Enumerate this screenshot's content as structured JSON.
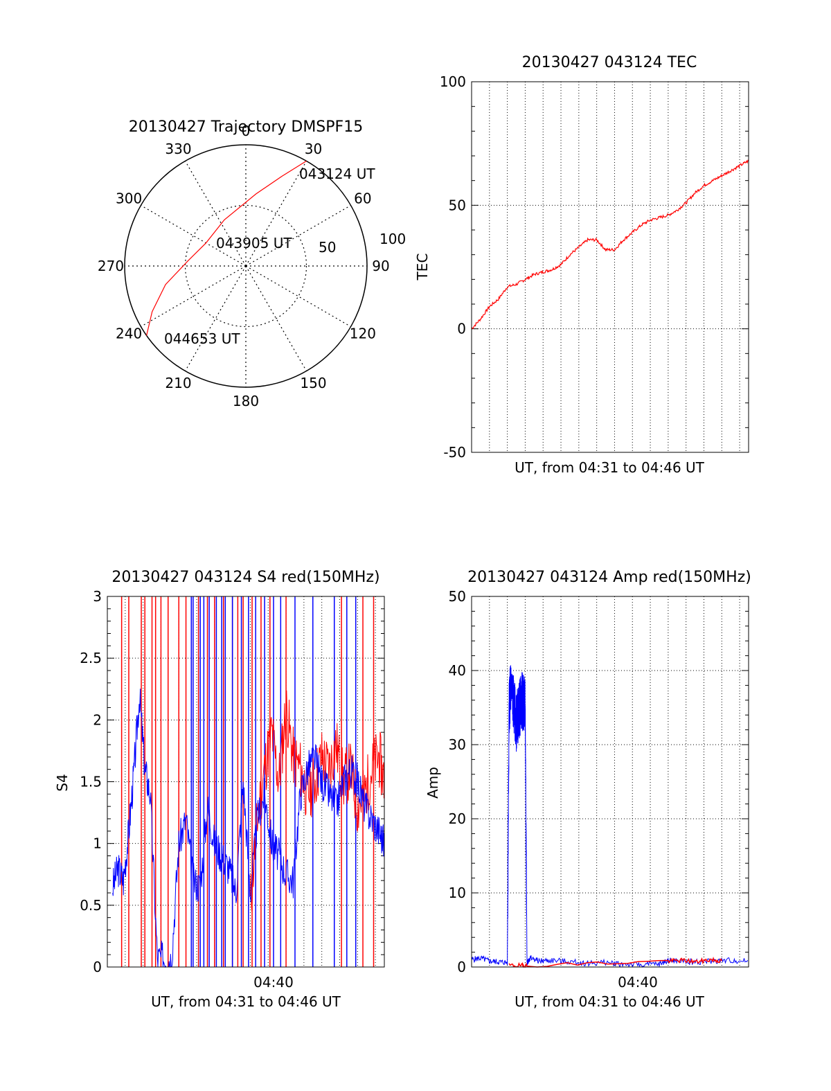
{
  "colors": {
    "red": "#ff0000",
    "blue": "#0000ff",
    "grid": "#000000"
  },
  "chart_data": [
    {
      "type": "polar-trajectory",
      "title": "20130427 Trajectory DMSPF15",
      "azimuth_labels": [
        "0",
        "30",
        "60",
        "90",
        "120",
        "150",
        "180",
        "210",
        "240",
        "270",
        "300",
        "330"
      ],
      "radial_labels": [
        "50",
        "100"
      ],
      "elevation_rings": [
        0,
        50
      ],
      "points": [
        {
          "label": "043124 UT",
          "azimuth": 30,
          "zenith_angle": 100
        },
        {
          "label": "043905 UT",
          "azimuth": 300,
          "zenith_angle": 15
        },
        {
          "label": "044653 UT",
          "azimuth": 235,
          "zenith_angle": 100
        }
      ],
      "track": [
        {
          "az": 30,
          "za": 100
        },
        {
          "az": 22,
          "za": 80
        },
        {
          "az": 8,
          "za": 60
        },
        {
          "az": 335,
          "za": 42
        },
        {
          "az": 300,
          "za": 38
        },
        {
          "az": 275,
          "za": 48
        },
        {
          "az": 257,
          "za": 68
        },
        {
          "az": 244,
          "za": 86
        },
        {
          "az": 235,
          "za": 100
        }
      ],
      "series_color": "red"
    },
    {
      "type": "line",
      "title": "20130427 043124 TEC",
      "ylabel": "TEC",
      "xlabel": "UT, from 04:31 to 04:46 UT",
      "ylim": [
        -50,
        100
      ],
      "yticks": [
        "-50",
        "0",
        "50",
        "100"
      ],
      "xlim_minutes": [
        0,
        15.5
      ],
      "grid": true,
      "series": [
        {
          "color": "red",
          "x_minutes": [
            0,
            0.5,
            1,
            1.5,
            2,
            2.5,
            3,
            3.5,
            4,
            4.5,
            5,
            5.5,
            6,
            6.5,
            7,
            7.5,
            8,
            8.5,
            9,
            9.5,
            10,
            10.5,
            11,
            11.5,
            12,
            12.5,
            13,
            13.5,
            14,
            14.5,
            15,
            15.5
          ],
          "values": [
            0,
            4,
            9,
            12,
            17,
            18,
            20,
            22,
            23,
            24,
            26,
            30,
            33,
            36,
            36,
            32,
            32,
            36,
            39,
            42,
            44,
            45,
            46,
            48,
            51,
            55,
            58,
            60,
            62,
            64,
            66,
            68
          ]
        }
      ]
    },
    {
      "type": "line",
      "title": "20130427 043124 S4 red(150MHz)",
      "ylabel": "S4",
      "xlabel": "UT, from 04:31 to 04:46 UT",
      "xtick_label": "04:40",
      "ylim": [
        0,
        3
      ],
      "yticks": [
        "0",
        "0.5",
        "1",
        "1.5",
        "2",
        "2.5",
        "3"
      ],
      "xlim_minutes": [
        0,
        15.5
      ],
      "grid": true,
      "series": [
        {
          "color": "blue",
          "x_minutes": [
            0.3,
            0.6,
            0.9,
            1.2,
            1.5,
            1.8,
            2.1,
            2.4,
            2.8,
            3.2,
            3.6,
            4.0,
            4.4,
            4.8,
            5.2,
            5.6,
            6.0,
            6.4,
            6.8,
            7.2,
            7.6,
            8.0,
            8.4,
            8.8,
            9.2,
            9.6,
            10.0,
            10.4,
            10.8,
            11.2,
            11.6,
            12.0,
            12.4,
            12.8,
            13.2,
            13.6,
            14.0,
            14.4,
            14.8,
            15.2,
            15.5
          ],
          "values": [
            0.65,
            0.8,
            0.7,
            1.1,
            1.6,
            2.2,
            1.6,
            1.4,
            0.07,
            0.07,
            0.07,
            1.0,
            1.2,
            0.7,
            0.65,
            1.3,
            1.0,
            0.9,
            0.8,
            0.6,
            1.5,
            0.6,
            1.2,
            1.4,
            1.0,
            0.9,
            0.75,
            0.7,
            1.4,
            1.6,
            1.7,
            1.5,
            1.4,
            1.3,
            1.5,
            1.6,
            1.5,
            1.3,
            1.2,
            1.1,
            1.0
          ]
        },
        {
          "color": "red",
          "x_minutes": [
            8.0,
            8.4,
            8.8,
            9.2,
            9.6,
            10.0,
            10.4,
            10.8,
            11.2,
            11.6,
            12.0,
            12.4,
            12.8,
            13.2,
            13.6,
            14.0,
            14.4,
            14.8,
            15.2,
            15.5
          ],
          "values": [
            0.5,
            1.2,
            1.6,
            1.9,
            1.5,
            2.1,
            1.7,
            1.6,
            1.4,
            1.5,
            1.7,
            1.6,
            1.8,
            1.5,
            1.6,
            1.3,
            1.4,
            1.6,
            1.7,
            1.5
          ]
        }
      ],
      "vertical_spikes": {
        "red": [
          0.8,
          1.2,
          1.9,
          2.1,
          2.5,
          2.7,
          3.0,
          3.4,
          4.0,
          4.4,
          4.7,
          5.1,
          5.6,
          6.0,
          6.5,
          7.0,
          7.3,
          7.6,
          8.1,
          8.6,
          9.1,
          10.0,
          13.1,
          14.3,
          14.9
        ],
        "blue": [
          4.7,
          4.8,
          5.2,
          5.4,
          5.7,
          6.1,
          6.4,
          6.6,
          7.0,
          7.5,
          7.9,
          8.3,
          8.8,
          9.3,
          9.7,
          10.5,
          11.5,
          12.7,
          13.4,
          13.9
        ]
      }
    },
    {
      "type": "line",
      "title": "20130427 043124 Amp red(150MHz)",
      "ylabel": "Amp",
      "xlabel": "UT, from 04:31 to 04:46 UT",
      "xtick_label": "04:40",
      "ylim": [
        0,
        50
      ],
      "yticks": [
        "0",
        "10",
        "20",
        "30",
        "40",
        "50"
      ],
      "xlim_minutes": [
        0,
        15.5
      ],
      "grid": true,
      "series": [
        {
          "color": "blue",
          "x_minutes": [
            0,
            0.5,
            1,
            1.5,
            2.0,
            2.1,
            2.2,
            2.5,
            2.8,
            3.0,
            3.1,
            3.2,
            3.3,
            3.8,
            4.5,
            5.5,
            6.5,
            7.5,
            8.5,
            9.5,
            10.5,
            11.0,
            11.5,
            12.5,
            13.5,
            14.5,
            15.5
          ],
          "values": [
            1.0,
            1.2,
            0.8,
            0.7,
            0.6,
            35,
            38,
            33,
            36,
            35,
            0.5,
            1.0,
            1.2,
            0.8,
            0.9,
            0.7,
            0.5,
            0.6,
            0.4,
            0.3,
            0.4,
            0.9,
            0.8,
            0.7,
            0.8,
            0.9,
            0.8
          ]
        },
        {
          "color": "red",
          "x_minutes": [
            2.1,
            2.8,
            3.1,
            11.0,
            11.8,
            12.6,
            13.4,
            14.0
          ],
          "values": [
            0.2,
            0.2,
            0.2,
            0.8,
            0.9,
            0.7,
            1.0,
            0.8
          ]
        }
      ]
    }
  ]
}
